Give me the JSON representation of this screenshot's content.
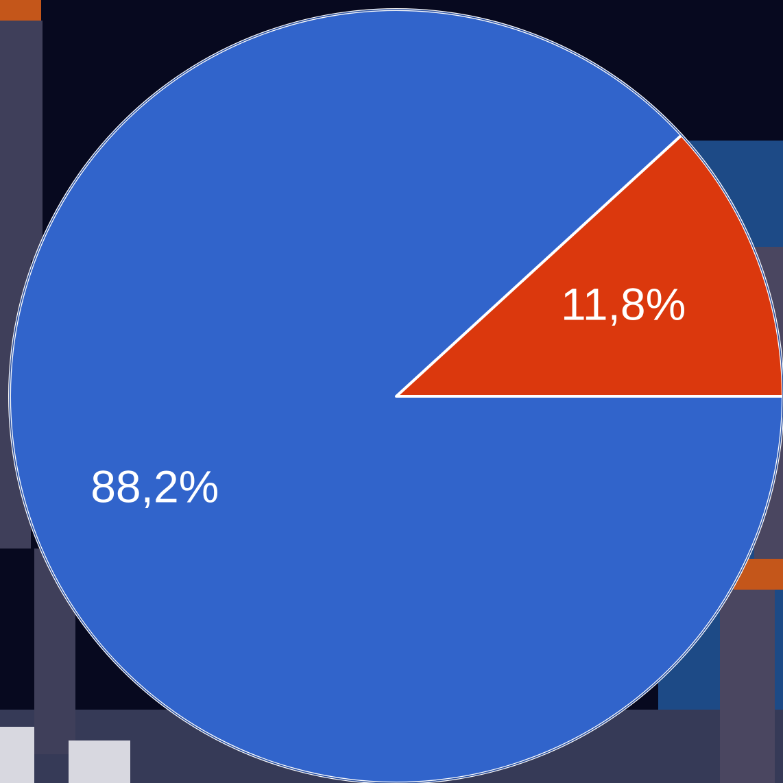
{
  "chart_data": {
    "type": "pie",
    "title": "",
    "slices": [
      {
        "label": "11,8%",
        "value": 11.8,
        "color": "#db380d"
      },
      {
        "label": "88,2%",
        "value": 88.2,
        "color": "#3164cb"
      }
    ],
    "start_angle_deg": 0,
    "direction": "counterclockwise",
    "slice_separator_color": "#ffffff"
  },
  "background": {
    "description_colors": {
      "base": "#0a0d2a",
      "banner": "#1f4f8c",
      "floor": "#3a3f5c",
      "player_kit": "#e8621a"
    }
  }
}
